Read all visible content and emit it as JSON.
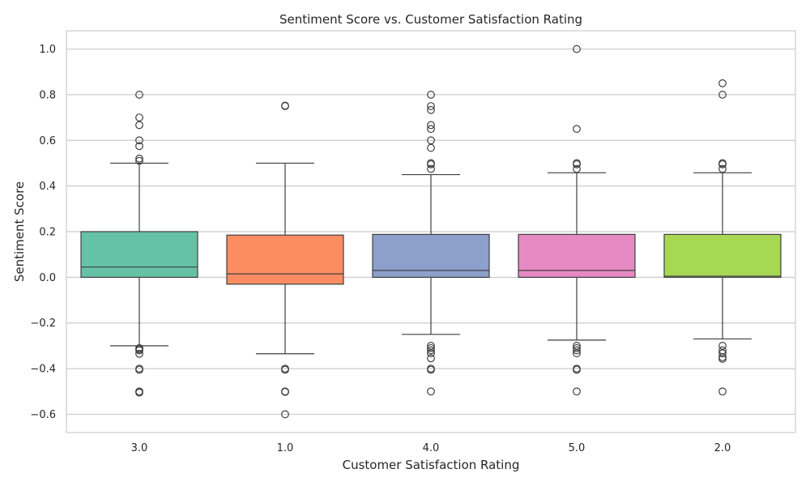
{
  "chart_data": {
    "type": "box",
    "title": "Sentiment Score vs. Customer Satisfaction Rating",
    "xlabel": "Customer Satisfaction Rating",
    "ylabel": "Sentiment Score",
    "ylim": [
      -0.68,
      1.08
    ],
    "yticks": [
      -0.6,
      -0.4,
      -0.2,
      0.0,
      0.2,
      0.4,
      0.6,
      0.8,
      1.0
    ],
    "ytick_labels": [
      "−0.6",
      "−0.4",
      "−0.2",
      "0.0",
      "0.2",
      "0.4",
      "0.6",
      "0.8",
      "1.0"
    ],
    "grid": true,
    "categories": [
      "3.0",
      "1.0",
      "4.0",
      "5.0",
      "2.0"
    ],
    "boxes": [
      {
        "category": "3.0",
        "color": "#66c2a5",
        "whisker_low": -0.3,
        "q1": 0.0,
        "median": 0.045,
        "q3": 0.2,
        "whisker_high": 0.5,
        "outliers": [
          0.8,
          0.7,
          0.667,
          0.6,
          0.575,
          0.52,
          0.51,
          -0.31,
          -0.315,
          -0.32,
          -0.335,
          -0.4,
          -0.405,
          -0.5,
          -0.505
        ]
      },
      {
        "category": "1.0",
        "color": "#fc8d62",
        "whisker_low": -0.335,
        "q1": -0.03,
        "median": 0.015,
        "q3": 0.185,
        "whisker_high": 0.5,
        "outliers": [
          0.752,
          0.75,
          -0.4,
          -0.405,
          -0.5,
          -0.502,
          -0.6
        ]
      },
      {
        "category": "4.0",
        "color": "#8da0cb",
        "whisker_low": -0.25,
        "q1": 0.0,
        "median": 0.03,
        "q3": 0.188,
        "whisker_high": 0.45,
        "outliers": [
          0.8,
          0.75,
          0.733,
          0.667,
          0.65,
          0.6,
          0.567,
          0.5,
          0.495,
          0.475,
          -0.3,
          -0.31,
          -0.32,
          -0.333,
          -0.355,
          -0.4,
          -0.405,
          -0.5
        ]
      },
      {
        "category": "5.0",
        "color": "#e78ac3",
        "whisker_low": -0.275,
        "q1": 0.0,
        "median": 0.03,
        "q3": 0.188,
        "whisker_high": 0.458,
        "outliers": [
          1.0,
          0.65,
          0.5,
          0.495,
          0.475,
          -0.3,
          -0.31,
          -0.32,
          -0.333,
          -0.4,
          -0.405,
          -0.5
        ]
      },
      {
        "category": "2.0",
        "color": "#a6d854",
        "whisker_low": -0.27,
        "q1": 0.0,
        "median": 0.005,
        "q3": 0.188,
        "whisker_high": 0.458,
        "outliers": [
          0.85,
          0.8,
          0.5,
          0.495,
          0.475,
          -0.3,
          -0.32,
          -0.333,
          -0.35,
          -0.357,
          -0.5
        ]
      }
    ]
  }
}
